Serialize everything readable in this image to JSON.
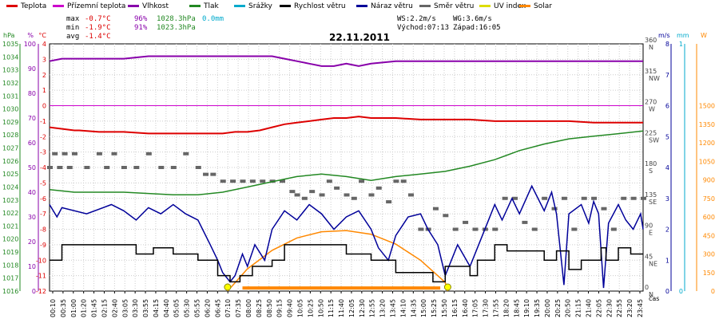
{
  "chart_data": {
    "type": "line",
    "title": "22.11.2011",
    "x_label": "čas",
    "legend": [
      {
        "name": "Teplota",
        "color": "#dd0000"
      },
      {
        "name": "Přízemní teplota",
        "color": "#cc00cc"
      },
      {
        "name": "Vlhkost",
        "color": "#8800aa"
      },
      {
        "name": "Tlak",
        "color": "#228822"
      },
      {
        "name": "Srážky",
        "color": "#00aacc"
      },
      {
        "name": "Rychlost větru",
        "color": "#000000"
      },
      {
        "name": "Náraz větru",
        "color": "#000099"
      },
      {
        "name": "Směr větru",
        "color": "#666666"
      },
      {
        "name": "UV index",
        "color": "#dddd00"
      },
      {
        "name": "Solar",
        "color": "#ff8800"
      }
    ],
    "stats": {
      "max": {
        "label": "max",
        "temp": "-0.7°C",
        "hum": "96%",
        "press": "1028.3hPa",
        "rain": "0.0mm"
      },
      "min": {
        "label": "min",
        "temp": "-1.9°C",
        "hum": "91%",
        "press": "1023.3hPa"
      },
      "avg": {
        "label": "avg",
        "temp": "-1.4°C"
      },
      "ws": "WS:2.2m/s",
      "wg": "WG:3.6m/s",
      "sunrise": "Východ:07:13",
      "sunset": "Západ:16:05"
    },
    "axes": {
      "hpa": {
        "unit": "hPa",
        "min": 1016,
        "max": 1035,
        "ticks": [
          "1016",
          "1017",
          "1018",
          "1019",
          "1020",
          "1021",
          "1022",
          "1023",
          "1024",
          "1025",
          "1026",
          "1027",
          "1028",
          "1029",
          "1030",
          "1031",
          "1032",
          "1033",
          "1034",
          "1035"
        ]
      },
      "hum": {
        "unit": "%",
        "min": 0,
        "max": 100,
        "ticks": [
          "0",
          "10",
          "20",
          "30",
          "40",
          "50",
          "60",
          "70",
          "80",
          "90",
          "100"
        ]
      },
      "temp": {
        "unit": "°C",
        "min": -12,
        "max": 4,
        "ticks": [
          "-12",
          "-11",
          "-10",
          "-9",
          "-8",
          "-7",
          "-6",
          "-5",
          "-4",
          "-3",
          "-2",
          "-1",
          "0",
          "1",
          "2",
          "3",
          "4"
        ]
      },
      "dir": {
        "unit": "",
        "ticks": [
          {
            "v": 0,
            "label": "0"
          },
          {
            "v": 45,
            "label": "45"
          },
          {
            "v": 90,
            "label": "90"
          },
          {
            "v": 135,
            "label": "135"
          },
          {
            "v": 180,
            "label": "180"
          },
          {
            "v": 225,
            "label": "225"
          },
          {
            "v": 270,
            "label": "270"
          },
          {
            "v": 315,
            "label": "315"
          },
          {
            "v": 360,
            "label": "360"
          }
        ],
        "names": [
          {
            "v": 0,
            "label": "N"
          },
          {
            "v": 45,
            "label": "NE"
          },
          {
            "v": 90,
            "label": "E"
          },
          {
            "v": 135,
            "label": "SE"
          },
          {
            "v": 180,
            "label": "S"
          },
          {
            "v": 225,
            "label": "SW"
          },
          {
            "v": 270,
            "label": "W"
          },
          {
            "v": 315,
            "label": "NW"
          },
          {
            "v": 360,
            "label": "N"
          }
        ]
      },
      "ms": {
        "unit": "m/s",
        "min": 0,
        "max": 8,
        "ticks": [
          "0",
          "1",
          "2",
          "3",
          "4",
          "5",
          "6",
          "7",
          "8"
        ]
      },
      "mm": {
        "unit": "mm",
        "min": 0,
        "max": 1,
        "ticks": [
          "0",
          "1"
        ]
      },
      "w": {
        "unit": "W",
        "min": 0,
        "max": 2000,
        "ticks": [
          "0",
          "150",
          "300",
          "450",
          "600",
          "750",
          "900",
          "1050",
          "1200",
          "1350",
          "1500"
        ]
      }
    },
    "x_ticks": [
      "00:10",
      "00:35",
      "01:00",
      "01:20",
      "01:45",
      "02:15",
      "02:40",
      "03:05",
      "03:30",
      "03:55",
      "04:15",
      "04:40",
      "05:05",
      "05:30",
      "05:55",
      "06:20",
      "06:45",
      "07:10",
      "07:35",
      "08:00",
      "08:25",
      "08:50",
      "09:15",
      "09:40",
      "10:05",
      "10:25",
      "10:50",
      "11:15",
      "11:40",
      "12:05",
      "12:30",
      "12:55",
      "13:20",
      "13:45",
      "14:10",
      "14:35",
      "15:00",
      "15:25",
      "15:50",
      "16:15",
      "16:40",
      "17:05",
      "17:30",
      "17:55",
      "18:20",
      "18:45",
      "19:10",
      "19:35",
      "20:00",
      "20:25",
      "20:50",
      "21:15",
      "21:40",
      "22:05",
      "22:30",
      "22:55",
      "23:20",
      "23:45"
    ],
    "series": {
      "temperature": {
        "x": [
          0,
          1,
          1.2,
          2,
          3,
          4,
          5,
          6,
          7,
          7.5,
          8,
          8.5,
          9,
          9.5,
          10,
          10.5,
          11,
          11.5,
          12,
          12.5,
          13,
          14,
          15,
          16,
          17,
          18,
          19,
          20,
          21,
          22,
          23,
          24
        ],
        "y": [
          -1.4,
          -1.6,
          -1.6,
          -1.7,
          -1.7,
          -1.8,
          -1.8,
          -1.8,
          -1.8,
          -1.7,
          -1.7,
          -1.6,
          -1.4,
          -1.2,
          -1.1,
          -1.0,
          -0.9,
          -0.8,
          -0.8,
          -0.7,
          -0.8,
          -0.8,
          -0.9,
          -0.9,
          -0.9,
          -1.0,
          -1.0,
          -1.0,
          -1.0,
          -1.1,
          -1.1,
          -1.1
        ]
      },
      "ground_temperature": {
        "x": [
          0,
          24
        ],
        "y": [
          0,
          0
        ]
      },
      "humidity": {
        "x": [
          0,
          0.5,
          1,
          3,
          4,
          9,
          9.5,
          10,
          10.5,
          11,
          11.5,
          12,
          12.5,
          13,
          14,
          15,
          16,
          17,
          18,
          19,
          20,
          21,
          22,
          23,
          24
        ],
        "y": [
          93,
          94,
          94,
          94,
          95,
          95,
          94,
          93,
          92,
          91,
          91,
          92,
          91,
          92,
          93,
          93,
          93,
          93,
          93,
          93,
          93,
          93,
          93,
          93,
          93
        ]
      },
      "pressure": {
        "x": [
          0,
          1,
          2,
          3,
          4,
          5,
          6,
          7,
          8,
          9,
          10,
          11,
          12,
          13,
          14,
          15,
          16,
          17,
          18,
          19,
          20,
          21,
          22,
          23,
          24
        ],
        "y": [
          1023.8,
          1023.6,
          1023.6,
          1023.6,
          1023.5,
          1023.4,
          1023.4,
          1023.6,
          1024.0,
          1024.4,
          1024.8,
          1025.0,
          1024.8,
          1024.5,
          1024.8,
          1025.0,
          1025.2,
          1025.6,
          1026.1,
          1026.8,
          1027.3,
          1027.7,
          1027.9,
          1028.1,
          1028.3
        ]
      },
      "wind_speed": {
        "x": [
          0,
          0.5,
          0.5,
          3.5,
          3.5,
          4.2,
          4.2,
          5,
          5,
          6,
          6,
          6.8,
          6.8,
          7.3,
          7.3,
          7.7,
          7.7,
          8.2,
          8.2,
          9,
          9,
          9.5,
          9.5,
          12,
          12,
          13,
          13,
          14,
          14,
          15.5,
          15.5,
          16,
          16,
          17,
          17,
          17.3,
          17.3,
          18,
          18,
          18.5,
          18.5,
          20,
          20,
          20.5,
          20.5,
          21,
          21,
          21.5,
          21.5,
          22.3,
          22.3,
          22.5,
          22.5,
          23,
          23,
          23.5,
          23.5,
          24
        ],
        "y": [
          1.0,
          1.0,
          1.5,
          1.5,
          1.2,
          1.2,
          1.4,
          1.4,
          1.2,
          1.2,
          1.0,
          1.0,
          0.5,
          0.5,
          0.3,
          0.3,
          0.5,
          0.5,
          0.8,
          0.8,
          1.0,
          1.0,
          1.5,
          1.5,
          1.2,
          1.2,
          1.0,
          1.0,
          0.6,
          0.6,
          0.3,
          0.3,
          0.8,
          0.8,
          0.5,
          0.5,
          1.0,
          1.0,
          1.5,
          1.5,
          1.3,
          1.3,
          1.0,
          1.0,
          1.3,
          1.3,
          0.7,
          0.7,
          1.0,
          1.0,
          1.4,
          1.4,
          1.0,
          1.0,
          1.4,
          1.4,
          1.2,
          1.2
        ]
      },
      "wind_gust": {
        "x": [
          0,
          0.3,
          0.5,
          1.5,
          2.5,
          3,
          3.5,
          4,
          4.5,
          5,
          5.5,
          6,
          6.5,
          6.8,
          7,
          7.3,
          7.5,
          7.8,
          8,
          8.3,
          8.7,
          9,
          9.5,
          10,
          10.5,
          11,
          11.5,
          12,
          12.5,
          13,
          13.3,
          13.7,
          14,
          14.5,
          15,
          15.3,
          15.7,
          16,
          16.5,
          17,
          17.5,
          18,
          18.3,
          18.7,
          19,
          19.5,
          20,
          20.3,
          20.5,
          20.8,
          21,
          21.5,
          21.8,
          22,
          22.2,
          22.4,
          22.6,
          22.8,
          23,
          23.3,
          23.6,
          23.9,
          24
        ],
        "y": [
          2.8,
          2.4,
          2.7,
          2.5,
          2.8,
          2.6,
          2.3,
          2.7,
          2.5,
          2.8,
          2.5,
          2.3,
          1.5,
          1.0,
          0.6,
          0.3,
          0.5,
          1.2,
          0.8,
          1.5,
          1.0,
          2.0,
          2.6,
          2.3,
          2.8,
          2.5,
          2.0,
          2.4,
          2.6,
          2.0,
          1.4,
          1.0,
          1.8,
          2.4,
          2.5,
          2.0,
          1.5,
          0.5,
          1.5,
          0.8,
          1.8,
          2.8,
          2.3,
          3.0,
          2.5,
          3.4,
          2.6,
          3.2,
          2.5,
          0.2,
          2.5,
          2.8,
          2.2,
          2.9,
          2.5,
          0.1,
          2.2,
          2.5,
          2.8,
          2.3,
          2.0,
          2.5,
          2.0
        ]
      },
      "solar": {
        "x": [
          7.2,
          8,
          9,
          10,
          11,
          12,
          13,
          14,
          15,
          16,
          16.1
        ],
        "y": [
          0,
          180,
          330,
          430,
          480,
          490,
          460,
          380,
          250,
          70,
          0
        ]
      },
      "solar_base": {
        "x": [
          7.8,
          15.8
        ],
        "y": [
          25,
          25
        ]
      },
      "uv": {
        "points": [
          {
            "x": 7.2,
            "y": 0
          },
          {
            "x": 16.1,
            "y": 0
          }
        ]
      },
      "wind_direction": {
        "x": [
          0,
          0.2,
          0.4,
          0.6,
          0.8,
          1.0,
          1.5,
          2.0,
          2.3,
          2.6,
          3.0,
          3.5,
          4.0,
          4.5,
          5.0,
          5.5,
          6.0,
          6.3,
          6.6,
          7.0,
          7.4,
          7.8,
          8.2,
          8.6,
          9.0,
          9.4,
          9.8,
          10.0,
          10.3,
          10.6,
          11.0,
          11.3,
          11.6,
          12.0,
          12.3,
          12.6,
          13.0,
          13.3,
          13.7,
          14.0,
          14.3,
          14.6,
          15.0,
          15.3,
          15.6,
          16.0,
          16.4,
          16.8,
          17.2,
          17.6,
          18.0,
          18.4,
          18.8,
          19.2,
          19.6,
          20.0,
          20.4,
          20.8,
          21.2,
          21.6,
          22.0,
          22.4,
          22.8,
          23.2,
          23.6,
          24.0
        ],
        "y": [
          180,
          200,
          180,
          200,
          180,
          200,
          180,
          200,
          180,
          200,
          180,
          180,
          200,
          180,
          180,
          200,
          180,
          170,
          170,
          160,
          160,
          160,
          160,
          160,
          160,
          160,
          145,
          140,
          135,
          145,
          140,
          160,
          150,
          140,
          135,
          160,
          140,
          150,
          130,
          160,
          160,
          140,
          90,
          90,
          120,
          110,
          90,
          100,
          90,
          90,
          90,
          135,
          135,
          100,
          90,
          135,
          120,
          135,
          90,
          135,
          135,
          120,
          90,
          135,
          135,
          135
        ]
      }
    }
  }
}
